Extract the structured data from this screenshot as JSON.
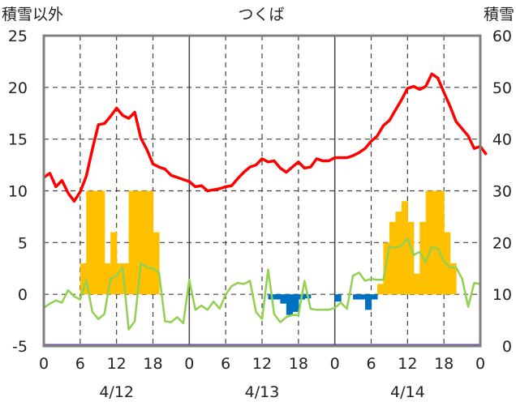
{
  "chart_data": {
    "type": "bar+line",
    "title": "つくば",
    "left_axis_title": "積雪以外",
    "right_axis_title": "積雪",
    "left_ylim": [
      -5,
      25
    ],
    "left_yticks": [
      "25",
      "20",
      "15",
      "10",
      "5",
      "0",
      "-5"
    ],
    "left_ytick_values": [
      25,
      20,
      15,
      10,
      5,
      0,
      -5
    ],
    "right_ylim": [
      0,
      60
    ],
    "right_yticks": [
      "60",
      "50",
      "40",
      "30",
      "20",
      "10",
      "0"
    ],
    "right_ytick_values": [
      60,
      50,
      40,
      30,
      20,
      10,
      0
    ],
    "xlim_hours": [
      0,
      72
    ],
    "xtick_labels": [
      "0",
      "6",
      "12",
      "18",
      "0",
      "6",
      "12",
      "18",
      "0",
      "6",
      "12",
      "18",
      "0"
    ],
    "xtick_hours": [
      0,
      6,
      12,
      18,
      24,
      30,
      36,
      42,
      48,
      54,
      60,
      66,
      72
    ],
    "day_labels": [
      "4/12",
      "4/13",
      "4/14"
    ],
    "colors": {
      "temperature": "#ff0000",
      "green_series": "#92d050",
      "bar_positive": "#ffc000",
      "bar_negative": "#0070c0",
      "snow_depth": "#7030a0",
      "frame": "#808080",
      "grid": "#404040"
    },
    "series": [
      {
        "name": "temperature",
        "axis": "left",
        "values": [
          [
            0,
            11.3
          ],
          [
            1,
            11.7
          ],
          [
            2,
            10.4
          ],
          [
            3,
            11.0
          ],
          [
            4,
            9.8
          ],
          [
            5,
            9.0
          ],
          [
            6,
            9.9
          ],
          [
            7,
            11.4
          ],
          [
            8,
            14.0
          ],
          [
            9,
            16.4
          ],
          [
            10,
            16.5
          ],
          [
            11,
            17.2
          ],
          [
            12,
            18.0
          ],
          [
            13,
            17.3
          ],
          [
            14,
            17.0
          ],
          [
            15,
            17.6
          ],
          [
            16,
            15.1
          ],
          [
            17,
            14.0
          ],
          [
            18,
            12.6
          ],
          [
            19,
            12.3
          ],
          [
            20,
            12.1
          ],
          [
            21,
            11.5
          ],
          [
            22,
            11.3
          ],
          [
            23,
            11.1
          ],
          [
            24,
            10.9
          ],
          [
            25,
            10.4
          ],
          [
            26,
            10.5
          ],
          [
            27,
            10.0
          ],
          [
            28,
            10.1
          ],
          [
            29,
            10.2
          ],
          [
            30,
            10.4
          ],
          [
            31,
            10.5
          ],
          [
            32,
            11.2
          ],
          [
            33,
            11.8
          ],
          [
            34,
            12.3
          ],
          [
            35,
            12.5
          ],
          [
            36,
            13.1
          ],
          [
            37,
            12.8
          ],
          [
            38,
            12.9
          ],
          [
            39,
            12.2
          ],
          [
            40,
            11.8
          ],
          [
            41,
            12.3
          ],
          [
            42,
            12.8
          ],
          [
            43,
            12.2
          ],
          [
            44,
            12.3
          ],
          [
            45,
            13.1
          ],
          [
            46,
            12.9
          ],
          [
            47,
            12.9
          ],
          [
            48,
            13.2
          ],
          [
            49,
            13.2
          ],
          [
            50,
            13.2
          ],
          [
            51,
            13.4
          ],
          [
            52,
            13.7
          ],
          [
            53,
            14.1
          ],
          [
            54,
            14.8
          ],
          [
            55,
            15.3
          ],
          [
            56,
            16.3
          ],
          [
            57,
            16.8
          ],
          [
            58,
            17.8
          ],
          [
            59,
            18.8
          ],
          [
            60,
            19.9
          ],
          [
            61,
            20.1
          ],
          [
            62,
            19.8
          ],
          [
            63,
            20.1
          ],
          [
            64,
            21.3
          ],
          [
            65,
            20.9
          ],
          [
            66,
            19.5
          ],
          [
            67,
            18.2
          ],
          [
            68,
            16.7
          ],
          [
            69,
            16.0
          ],
          [
            70,
            15.3
          ],
          [
            71,
            14.1
          ],
          [
            72,
            14.3
          ],
          [
            73,
            13.5
          ]
        ]
      },
      {
        "name": "green_series",
        "axis": "left",
        "values": [
          [
            0,
            -1.3
          ],
          [
            1,
            -0.9
          ],
          [
            2,
            -0.6
          ],
          [
            3,
            -0.8
          ],
          [
            4,
            0.4
          ],
          [
            5,
            -0.2
          ],
          [
            6,
            -0.5
          ],
          [
            7,
            1.4
          ],
          [
            8,
            -1.7
          ],
          [
            9,
            -2.4
          ],
          [
            10,
            -1.9
          ],
          [
            11,
            1.5
          ],
          [
            12,
            1.8
          ],
          [
            13,
            2.6
          ],
          [
            14,
            -3.4
          ],
          [
            15,
            -2.6
          ],
          [
            16,
            3.0
          ],
          [
            17,
            2.6
          ],
          [
            18,
            2.5
          ],
          [
            19,
            2.1
          ],
          [
            20,
            -2.6
          ],
          [
            21,
            -2.7
          ],
          [
            22,
            -2.2
          ],
          [
            23,
            -2.8
          ],
          [
            24,
            1.4
          ],
          [
            25,
            -1.5
          ],
          [
            26,
            -1.1
          ],
          [
            27,
            -1.5
          ],
          [
            28,
            -0.7
          ],
          [
            29,
            -1.4
          ],
          [
            30,
            0.0
          ],
          [
            31,
            0.8
          ],
          [
            32,
            1.1
          ],
          [
            33,
            1.0
          ],
          [
            34,
            1.3
          ],
          [
            35,
            -1.7
          ],
          [
            36,
            -2.4
          ],
          [
            37,
            2.4
          ],
          [
            38,
            -1.9
          ],
          [
            39,
            -2.7
          ],
          [
            40,
            -2.2
          ],
          [
            41,
            -2.0
          ],
          [
            42,
            -2.0
          ],
          [
            43,
            1.3
          ],
          [
            44,
            -1.4
          ],
          [
            45,
            -1.5
          ],
          [
            46,
            -1.5
          ],
          [
            47,
            -1.5
          ],
          [
            48,
            -1.3
          ],
          [
            49,
            -0.8
          ],
          [
            50,
            -1.4
          ],
          [
            51,
            1.8
          ],
          [
            52,
            2.1
          ],
          [
            53,
            1.3
          ],
          [
            54,
            1.5
          ],
          [
            55,
            1.4
          ],
          [
            56,
            1.4
          ],
          [
            57,
            4.6
          ],
          [
            58,
            4.5
          ],
          [
            59,
            4.7
          ],
          [
            60,
            5.4
          ],
          [
            61,
            3.8
          ],
          [
            62,
            4.1
          ],
          [
            63,
            3.1
          ],
          [
            64,
            4.6
          ],
          [
            65,
            4.4
          ],
          [
            66,
            3.2
          ],
          [
            67,
            2.6
          ],
          [
            68,
            2.6
          ],
          [
            69,
            1.5
          ],
          [
            70,
            -1.2
          ],
          [
            71,
            1.1
          ],
          [
            72,
            1.0
          ]
        ]
      },
      {
        "name": "bars",
        "axis": "left",
        "bar_width_hours": 1,
        "values": [
          [
            6,
            3.0
          ],
          [
            7,
            10.0
          ],
          [
            8,
            10.0
          ],
          [
            9,
            10.0
          ],
          [
            10,
            3.0
          ],
          [
            11,
            6.0
          ],
          [
            12,
            3.0
          ],
          [
            13,
            3.0
          ],
          [
            14,
            10.0
          ],
          [
            15,
            10.0
          ],
          [
            16,
            10.0
          ],
          [
            17,
            10.0
          ],
          [
            18,
            6.0
          ],
          [
            37,
            -0.5
          ],
          [
            38,
            -0.5
          ],
          [
            39,
            -0.9
          ],
          [
            40,
            -2.0
          ],
          [
            41,
            -1.7
          ],
          [
            42,
            -0.5
          ],
          [
            43,
            -0.4
          ],
          [
            48,
            -0.7
          ],
          [
            51,
            -0.5
          ],
          [
            52,
            -0.5
          ],
          [
            53,
            -1.5
          ],
          [
            54,
            -0.5
          ],
          [
            55,
            1.0
          ],
          [
            56,
            5.0
          ],
          [
            57,
            7.0
          ],
          [
            58,
            8.0
          ],
          [
            59,
            9.0
          ],
          [
            60,
            7.0
          ],
          [
            61,
            2.0
          ],
          [
            62,
            7.0
          ],
          [
            63,
            10.0
          ],
          [
            64,
            10.0
          ],
          [
            65,
            10.0
          ],
          [
            66,
            6.0
          ],
          [
            67,
            3.0
          ]
        ]
      },
      {
        "name": "snow_depth",
        "axis": "right",
        "values": [
          [
            0,
            0
          ],
          [
            72,
            0
          ]
        ]
      }
    ]
  }
}
